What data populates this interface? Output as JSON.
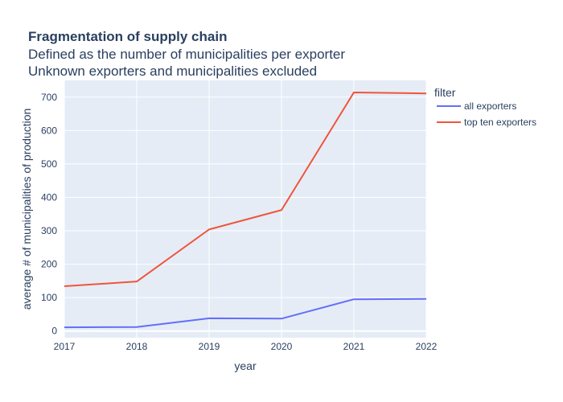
{
  "chart_data": {
    "type": "line",
    "title": "Fragmentation of supply chain",
    "subtitle_lines": [
      "Defined as the number of municipalities per exporter",
      "Unknown exporters and municipalities excluded"
    ],
    "xlabel": "year",
    "ylabel": "average # of municipalities of production",
    "x": [
      2017,
      2018,
      2019,
      2020,
      2021,
      2022
    ],
    "xlim": [
      2017,
      2022
    ],
    "ylim": [
      -20,
      750
    ],
    "yticks": [
      0,
      100,
      200,
      300,
      400,
      500,
      600,
      700
    ],
    "grid": true,
    "legend": {
      "title": "filter",
      "placement": "right"
    },
    "series": [
      {
        "name": "all exporters",
        "color": "#636efa",
        "values": [
          11,
          12,
          38,
          37,
          95,
          96
        ]
      },
      {
        "name": "top ten exporters",
        "color": "#ef553b",
        "values": [
          134,
          148,
          304,
          362,
          714,
          711
        ]
      }
    ],
    "colors": {
      "plot_background": "#e5ecf6",
      "grid": "#ffffff",
      "text": "#2a3f5f"
    }
  }
}
